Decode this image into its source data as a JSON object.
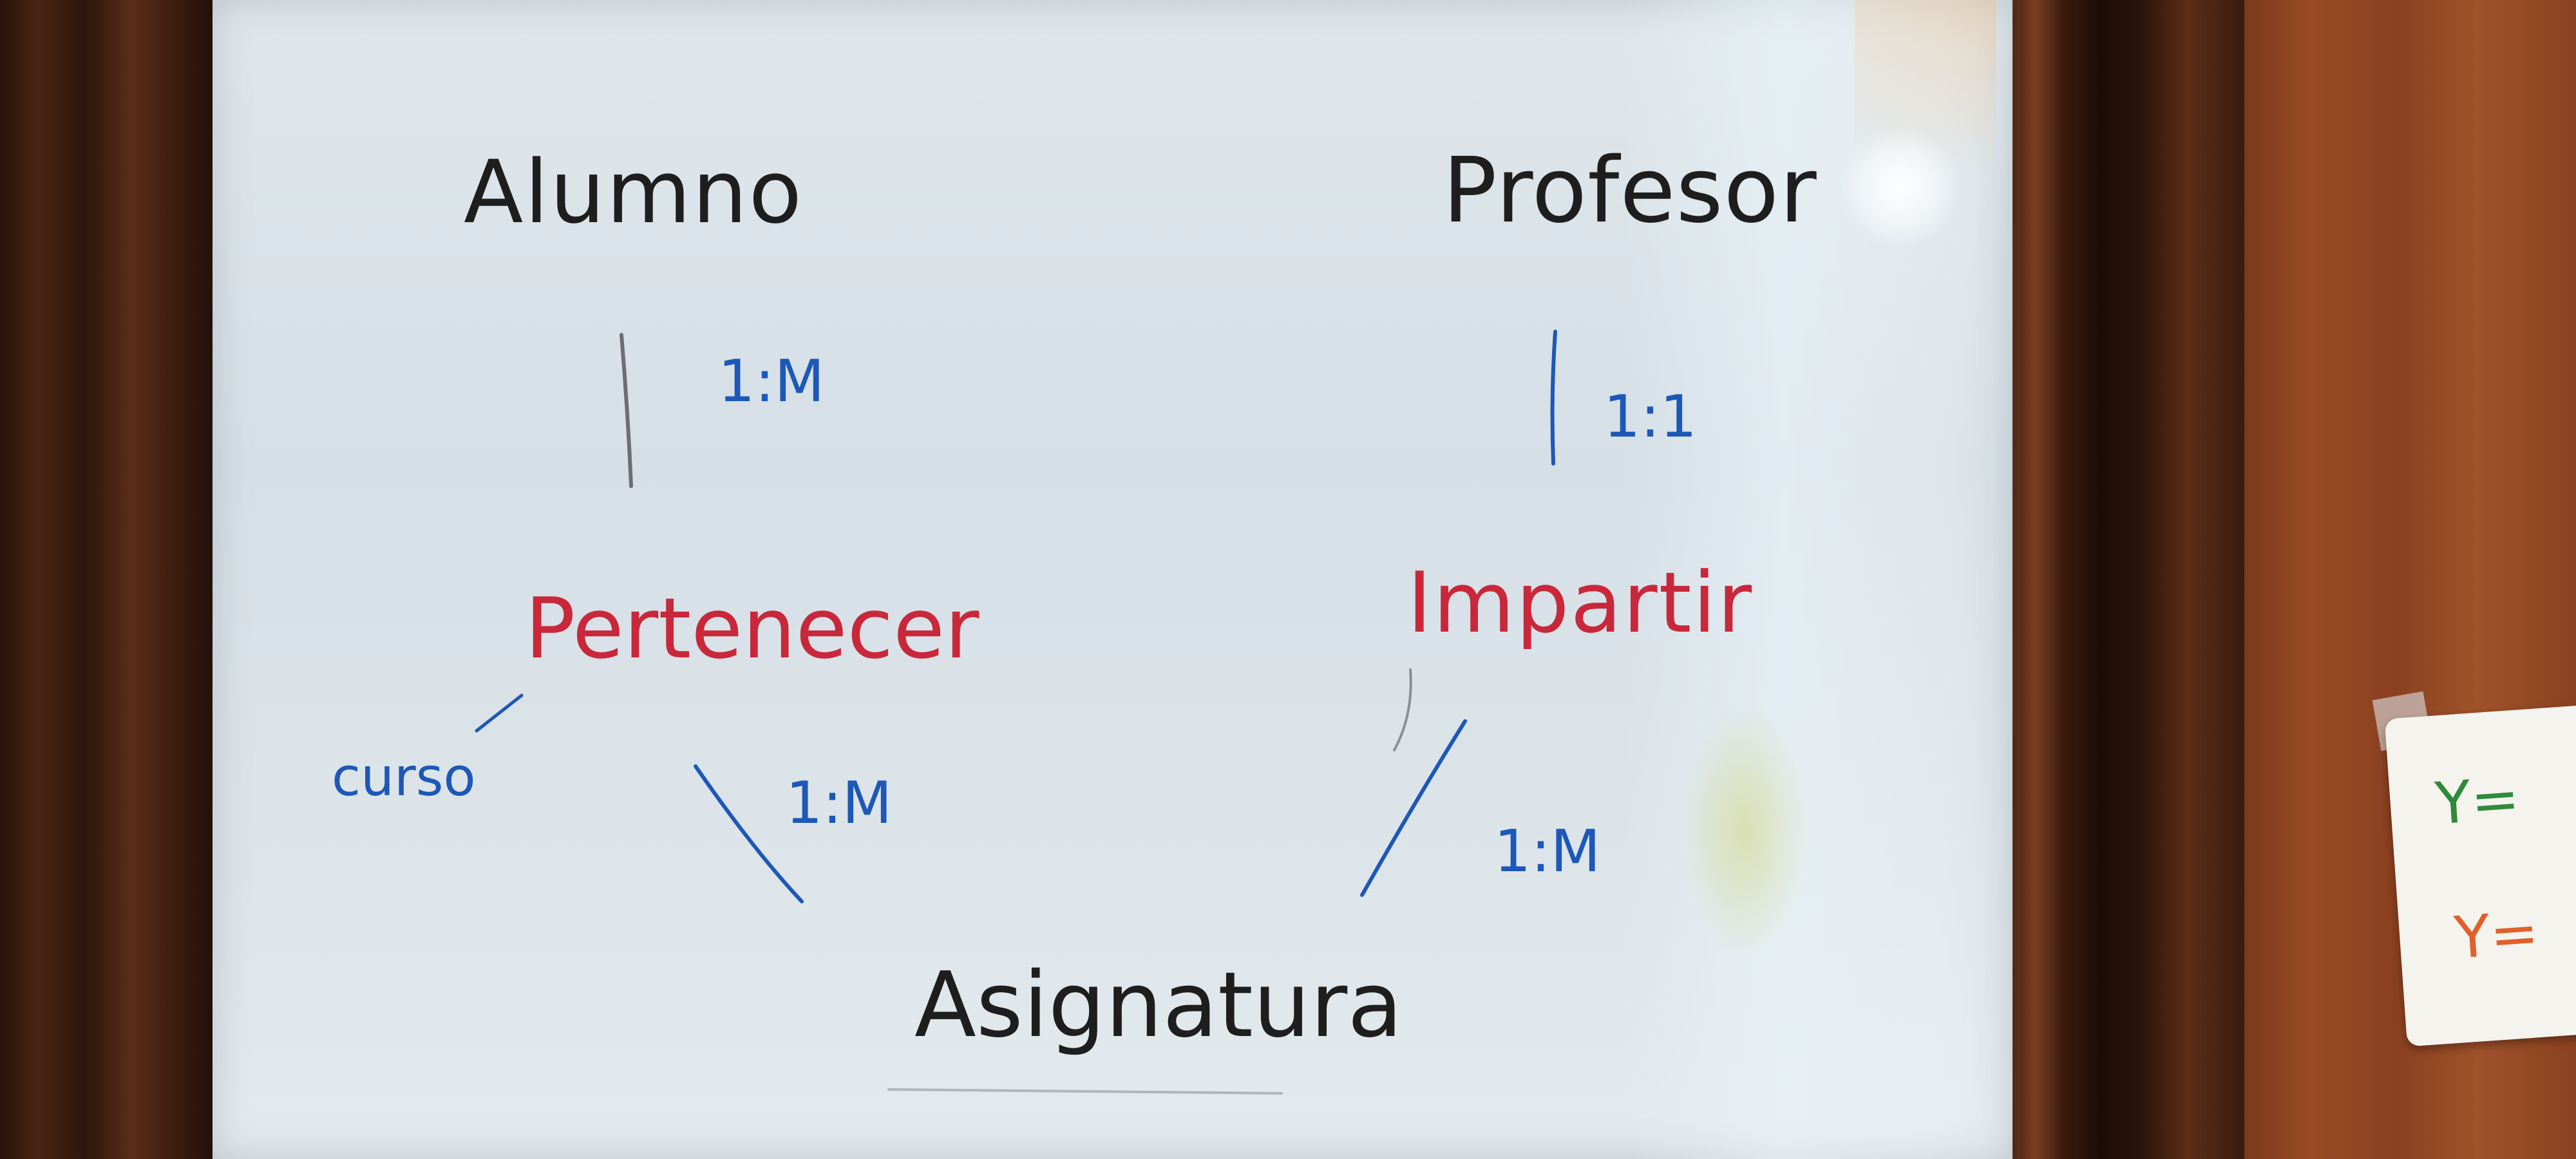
{
  "board": {
    "entities": {
      "alumno": "Alumno",
      "profesor": "Profesor",
      "asignatura": "Asignatura"
    },
    "relations": {
      "pertenecer": "Pertenecer",
      "impartir": "Impartir"
    },
    "attribute": {
      "curso": "curso"
    },
    "cardinalities": {
      "alumno_pertenecer": "1:M",
      "profesor_impartir": "1:1",
      "pertenecer_asignatura": "1:M",
      "impartir_asignatura": "1:M"
    }
  },
  "sticky_note": {
    "line1": "Y=",
    "line2": "Y=",
    "colors": {
      "line1": "#2f8a3a",
      "line2": "#e0602a"
    }
  },
  "colors": {
    "entity_ink": "#1e1e1e",
    "relation_ink": "#c8283a",
    "cardinality_ink": "#1d58b8"
  }
}
